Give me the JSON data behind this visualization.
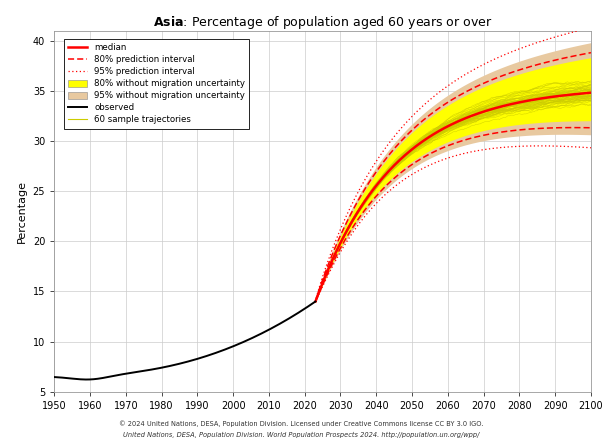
{
  "title_bold": "Asia",
  "title_rest": ": Percentage of population aged 60 years or over",
  "ylabel": "Percentage",
  "xlim": [
    1950,
    2100
  ],
  "ylim": [
    5,
    41
  ],
  "xticks": [
    1950,
    1960,
    1970,
    1980,
    1990,
    2000,
    2010,
    2020,
    2030,
    2040,
    2050,
    2060,
    2070,
    2080,
    2090,
    2100
  ],
  "yticks": [
    5,
    10,
    15,
    20,
    25,
    30,
    35,
    40
  ],
  "color_median": "#ff0000",
  "color_80pi": "#ff0000",
  "color_95pi": "#ff0000",
  "color_80band": "#ffff00",
  "color_95band": "#e8c9a0",
  "color_obs": "#000000",
  "color_trajectories": "#cccc00",
  "footer_line1": "© 2024 United Nations, DESA, Population Division. Licensed under Creative Commons license CC BY 3.0 IGO.",
  "footer_line2": "United Nations, DESA, Population Division. World Population Prospects 2024. http://population.un.org/wpp/",
  "background_color": "#ffffff",
  "plot_bg_color": "#ffffff",
  "grid_color": "#cccccc",
  "legend_labels": [
    "median",
    "80% prediction interval",
    "95% prediction interval",
    "80% without migration uncertainty",
    "95% without migration uncertainty",
    "observed",
    "60 sample trajectories"
  ]
}
